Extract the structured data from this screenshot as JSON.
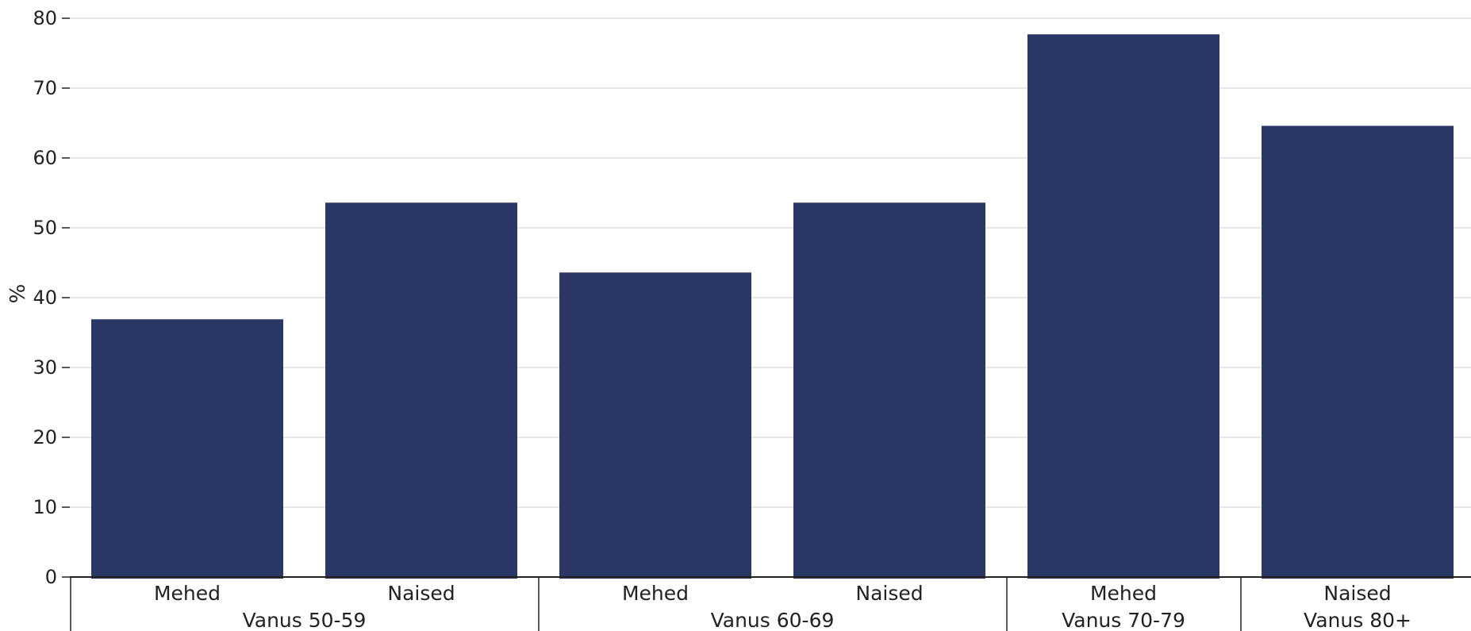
{
  "chart_data": {
    "type": "bar",
    "title": "",
    "xlabel": "",
    "ylabel": "%",
    "ylim": [
      0,
      80
    ],
    "yticks": [
      0,
      10,
      20,
      30,
      40,
      50,
      60,
      70,
      80
    ],
    "grid": true,
    "legend": "none",
    "bar_color": "#2b3764",
    "groups": [
      "Vanus 50-59",
      "Vanus 60-69",
      "Vanus 70-79",
      "Vanus 80+"
    ],
    "categories": [
      "Mehed",
      "Naised",
      "Mehed",
      "Naised",
      "Mehed",
      "Naised"
    ],
    "category_groups": [
      0,
      0,
      1,
      1,
      2,
      3
    ],
    "values": [
      36.9,
      53.6,
      43.6,
      53.6,
      77.7,
      64.6
    ]
  }
}
